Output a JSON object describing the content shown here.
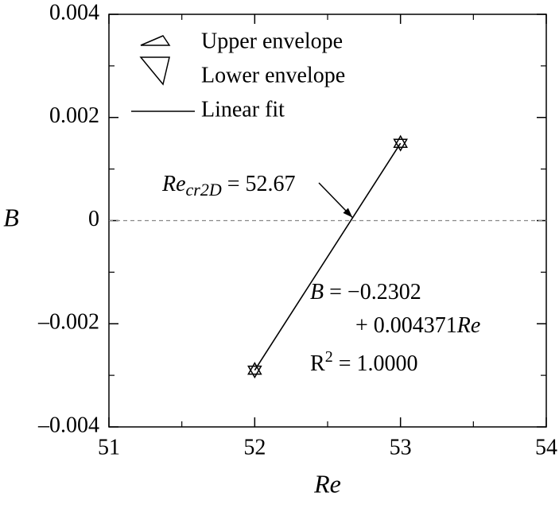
{
  "chart_data": {
    "type": "scatter",
    "xlabel": "Re",
    "ylabel": "B",
    "x": [
      52,
      53
    ],
    "series": [
      {
        "name": "Upper envelope",
        "marker": "triangle-up",
        "color": "#000000",
        "values": [
          -0.0029,
          0.0015
        ]
      },
      {
        "name": "Lower envelope",
        "marker": "triangle-down",
        "color": "#000000",
        "values": [
          -0.0029,
          0.0015
        ]
      },
      {
        "name": "Linear fit",
        "marker": "line",
        "color": "#000000",
        "values": [
          -0.0029,
          0.0015
        ]
      }
    ],
    "xlim": [
      51,
      54
    ],
    "xticks": [
      51,
      52,
      53,
      54
    ],
    "xminorticks": [
      51.5,
      52.5,
      53.5
    ],
    "ylim": [
      -0.004,
      0.004
    ],
    "yticks": [
      {
        "value": -0.004,
        "label": "–0.004"
      },
      {
        "value": -0.002,
        "label": "–0.002"
      },
      0,
      0.002,
      0.004
    ],
    "yminorticks": [
      -0.003,
      -0.001,
      0.001,
      0.003
    ],
    "reference_line": {
      "y": 0,
      "color": "#888888",
      "style": "dashed"
    },
    "legend": "upper left",
    "critical_annotation": {
      "main": "Re",
      "sub": "cr2D",
      "rest": " = 52.67",
      "x": 52.67
    },
    "equation": {
      "line1": [
        "B",
        " = −0.2302"
      ],
      "line2": [
        "+ 0.004371",
        "Re"
      ],
      "line3": [
        "R",
        "2",
        " = 1.0000"
      ]
    }
  }
}
